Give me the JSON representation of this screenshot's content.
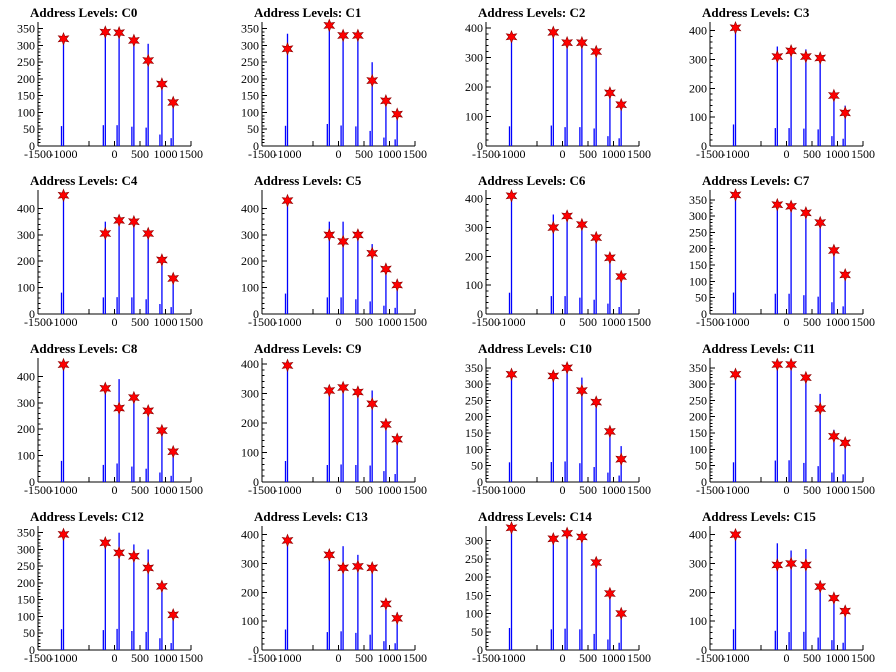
{
  "figure": {
    "colors": {
      "spike": "#0000ff",
      "marker": "#ff0000",
      "background": "#ffffff"
    },
    "marker_icon": "star-icon"
  },
  "chart_data": [
    {
      "type": "histogram-peaks",
      "title": "Address Levels: C0",
      "xlim": [
        -1500,
        1500
      ],
      "ylim": [
        0,
        370
      ],
      "xticks": [
        -1500,
        -1000,
        -500,
        0,
        500,
        1000,
        1500
      ],
      "xtick_labels": [
        "-1500",
        "-1000",
        "",
        "0",
        "500",
        "1000",
        "1500"
      ],
      "yticks": [
        0,
        50,
        100,
        150,
        200,
        250,
        300,
        350
      ],
      "peaks": [
        {
          "x": -1000,
          "y": 320,
          "h": 330
        },
        {
          "x": -180,
          "y": 340,
          "h": 345
        },
        {
          "x": 90,
          "y": 338,
          "h": 345
        },
        {
          "x": 380,
          "y": 315,
          "h": 320
        },
        {
          "x": 660,
          "y": 255,
          "h": 305
        },
        {
          "x": 930,
          "y": 185,
          "h": 190
        },
        {
          "x": 1150,
          "y": 130,
          "h": 130
        }
      ]
    },
    {
      "type": "histogram-peaks",
      "title": "Address Levels: C1",
      "xlim": [
        -1500,
        1500
      ],
      "ylim": [
        0,
        370
      ],
      "xticks": [
        -1500,
        -1000,
        -500,
        0,
        500,
        1000,
        1500
      ],
      "xtick_labels": [
        "-1500",
        "-1000",
        "",
        "0",
        "500",
        "1000",
        "1500"
      ],
      "yticks": [
        0,
        50,
        100,
        150,
        200,
        250,
        300,
        350
      ],
      "peaks": [
        {
          "x": -1000,
          "y": 290,
          "h": 335
        },
        {
          "x": -180,
          "y": 360,
          "h": 365
        },
        {
          "x": 90,
          "y": 330,
          "h": 340
        },
        {
          "x": 380,
          "y": 330,
          "h": 325
        },
        {
          "x": 660,
          "y": 195,
          "h": 250
        },
        {
          "x": 930,
          "y": 135,
          "h": 140
        },
        {
          "x": 1150,
          "y": 95,
          "h": 110
        }
      ]
    },
    {
      "type": "histogram-peaks",
      "title": "Address Levels: C2",
      "xlim": [
        -1500,
        1500
      ],
      "ylim": [
        0,
        420
      ],
      "xticks": [
        -1500,
        -1000,
        -500,
        0,
        500,
        1000,
        1500
      ],
      "xtick_labels": [
        "-1500",
        "-1000",
        "",
        "0",
        "500",
        "1000",
        "1500"
      ],
      "yticks": [
        0,
        100,
        200,
        300,
        400
      ],
      "peaks": [
        {
          "x": -1000,
          "y": 370,
          "h": 370
        },
        {
          "x": -180,
          "y": 385,
          "h": 385
        },
        {
          "x": 90,
          "y": 350,
          "h": 355
        },
        {
          "x": 380,
          "y": 350,
          "h": 355
        },
        {
          "x": 660,
          "y": 320,
          "h": 330
        },
        {
          "x": 930,
          "y": 180,
          "h": 185
        },
        {
          "x": 1150,
          "y": 140,
          "h": 145
        }
      ]
    },
    {
      "type": "histogram-peaks",
      "title": "Address Levels: C3",
      "xlim": [
        -1500,
        1500
      ],
      "ylim": [
        0,
        430
      ],
      "xticks": [
        -1500,
        -1000,
        -500,
        0,
        500,
        1000,
        1500
      ],
      "xtick_labels": [
        "-1500",
        "-1000",
        "",
        "0",
        "500",
        "1000",
        "1500"
      ],
      "yticks": [
        0,
        100,
        200,
        300,
        400
      ],
      "peaks": [
        {
          "x": -1000,
          "y": 410,
          "h": 415
        },
        {
          "x": -180,
          "y": 310,
          "h": 345
        },
        {
          "x": 90,
          "y": 330,
          "h": 345
        },
        {
          "x": 380,
          "y": 310,
          "h": 335
        },
        {
          "x": 660,
          "y": 305,
          "h": 320
        },
        {
          "x": 930,
          "y": 175,
          "h": 190
        },
        {
          "x": 1150,
          "y": 115,
          "h": 140
        }
      ]
    },
    {
      "type": "histogram-peaks",
      "title": "Address Levels: C4",
      "xlim": [
        -1500,
        1500
      ],
      "ylim": [
        0,
        470
      ],
      "xticks": [
        -1500,
        -1000,
        -500,
        0,
        500,
        1000,
        1500
      ],
      "xtick_labels": [
        "-1500",
        "-1000",
        "",
        "0",
        "500",
        "1000",
        "1500"
      ],
      "yticks": [
        0,
        100,
        200,
        300,
        400
      ],
      "peaks": [
        {
          "x": -1000,
          "y": 450,
          "h": 450
        },
        {
          "x": -180,
          "y": 305,
          "h": 350
        },
        {
          "x": 90,
          "y": 355,
          "h": 355
        },
        {
          "x": 380,
          "y": 350,
          "h": 350
        },
        {
          "x": 660,
          "y": 305,
          "h": 310
        },
        {
          "x": 930,
          "y": 205,
          "h": 210
        },
        {
          "x": 1150,
          "y": 135,
          "h": 145
        }
      ]
    },
    {
      "type": "histogram-peaks",
      "title": "Address Levels: C5",
      "xlim": [
        -1500,
        1500
      ],
      "ylim": [
        0,
        470
      ],
      "xticks": [
        -1500,
        -1000,
        -500,
        0,
        500,
        1000,
        1500
      ],
      "xtick_labels": [
        "-1500",
        "-1000",
        "",
        "0",
        "500",
        "1000",
        "1500"
      ],
      "yticks": [
        0,
        100,
        200,
        300,
        400
      ],
      "peaks": [
        {
          "x": -1000,
          "y": 430,
          "h": 430
        },
        {
          "x": -180,
          "y": 300,
          "h": 350
        },
        {
          "x": 90,
          "y": 275,
          "h": 350
        },
        {
          "x": 380,
          "y": 300,
          "h": 310
        },
        {
          "x": 660,
          "y": 230,
          "h": 265
        },
        {
          "x": 930,
          "y": 170,
          "h": 175
        },
        {
          "x": 1150,
          "y": 110,
          "h": 130
        }
      ]
    },
    {
      "type": "histogram-peaks",
      "title": "Address Levels: C6",
      "xlim": [
        -1500,
        1500
      ],
      "ylim": [
        0,
        430
      ],
      "xticks": [
        -1500,
        -1000,
        -500,
        0,
        500,
        1000,
        1500
      ],
      "xtick_labels": [
        "-1500",
        "-1000",
        "",
        "0",
        "500",
        "1000",
        "1500"
      ],
      "yticks": [
        0,
        100,
        200,
        300,
        400
      ],
      "peaks": [
        {
          "x": -1000,
          "y": 410,
          "h": 410
        },
        {
          "x": -180,
          "y": 300,
          "h": 345
        },
        {
          "x": 90,
          "y": 340,
          "h": 345
        },
        {
          "x": 380,
          "y": 310,
          "h": 315
        },
        {
          "x": 660,
          "y": 265,
          "h": 275
        },
        {
          "x": 930,
          "y": 195,
          "h": 200
        },
        {
          "x": 1150,
          "y": 130,
          "h": 135
        }
      ]
    },
    {
      "type": "histogram-peaks",
      "title": "Address Levels: C7",
      "xlim": [
        -1500,
        1500
      ],
      "ylim": [
        0,
        380
      ],
      "xticks": [
        -1500,
        -1000,
        -500,
        0,
        500,
        1000,
        1500
      ],
      "xtick_labels": [
        "-1500",
        "-1000",
        "",
        "0",
        "500",
        "1000",
        "1500"
      ],
      "yticks": [
        0,
        50,
        100,
        150,
        200,
        250,
        300,
        350
      ],
      "peaks": [
        {
          "x": -1000,
          "y": 365,
          "h": 365
        },
        {
          "x": -180,
          "y": 335,
          "h": 345
        },
        {
          "x": 90,
          "y": 330,
          "h": 345
        },
        {
          "x": 380,
          "y": 310,
          "h": 320
        },
        {
          "x": 660,
          "y": 280,
          "h": 295
        },
        {
          "x": 930,
          "y": 195,
          "h": 200
        },
        {
          "x": 1150,
          "y": 120,
          "h": 130
        }
      ]
    },
    {
      "type": "histogram-peaks",
      "title": "Address Levels: C8",
      "xlim": [
        -1500,
        1500
      ],
      "ylim": [
        0,
        470
      ],
      "xticks": [
        -1500,
        -1000,
        -500,
        0,
        500,
        1000,
        1500
      ],
      "xtick_labels": [
        "-1500",
        "-1000",
        "",
        "0",
        "500",
        "1000",
        "1500"
      ],
      "yticks": [
        0,
        100,
        200,
        300,
        400
      ],
      "peaks": [
        {
          "x": -1000,
          "y": 445,
          "h": 445
        },
        {
          "x": -180,
          "y": 355,
          "h": 360
        },
        {
          "x": 90,
          "y": 280,
          "h": 390
        },
        {
          "x": 380,
          "y": 320,
          "h": 325
        },
        {
          "x": 660,
          "y": 270,
          "h": 280
        },
        {
          "x": 930,
          "y": 195,
          "h": 200
        },
        {
          "x": 1150,
          "y": 115,
          "h": 130
        }
      ]
    },
    {
      "type": "histogram-peaks",
      "title": "Address Levels: C9",
      "xlim": [
        -1500,
        1500
      ],
      "ylim": [
        0,
        420
      ],
      "xticks": [
        -1500,
        -1000,
        -500,
        0,
        500,
        1000,
        1500
      ],
      "xtick_labels": [
        "-1500",
        "-1000",
        "",
        "0",
        "500",
        "1000",
        "1500"
      ],
      "yticks": [
        0,
        100,
        200,
        300,
        400
      ],
      "peaks": [
        {
          "x": -1000,
          "y": 395,
          "h": 395
        },
        {
          "x": -180,
          "y": 310,
          "h": 320
        },
        {
          "x": 90,
          "y": 320,
          "h": 330
        },
        {
          "x": 380,
          "y": 305,
          "h": 320
        },
        {
          "x": 660,
          "y": 265,
          "h": 310
        },
        {
          "x": 930,
          "y": 195,
          "h": 205
        },
        {
          "x": 1150,
          "y": 145,
          "h": 150
        }
      ]
    },
    {
      "type": "histogram-peaks",
      "title": "Address Levels: C10",
      "xlim": [
        -1500,
        1500
      ],
      "ylim": [
        0,
        380
      ],
      "xticks": [
        -1500,
        -1000,
        -500,
        0,
        500,
        1000,
        1500
      ],
      "xtick_labels": [
        "-1500",
        "-1000",
        "",
        "0",
        "500",
        "1000",
        "1500"
      ],
      "yticks": [
        0,
        50,
        100,
        150,
        200,
        250,
        300,
        350
      ],
      "peaks": [
        {
          "x": -1000,
          "y": 330,
          "h": 335
        },
        {
          "x": -180,
          "y": 325,
          "h": 340
        },
        {
          "x": 90,
          "y": 350,
          "h": 350
        },
        {
          "x": 380,
          "y": 280,
          "h": 320
        },
        {
          "x": 660,
          "y": 245,
          "h": 255
        },
        {
          "x": 930,
          "y": 155,
          "h": 160
        },
        {
          "x": 1150,
          "y": 70,
          "h": 110
        }
      ]
    },
    {
      "type": "histogram-peaks",
      "title": "Address Levels: C11",
      "xlim": [
        -1500,
        1500
      ],
      "ylim": [
        0,
        380
      ],
      "xticks": [
        -1500,
        -1000,
        -500,
        0,
        500,
        1000,
        1500
      ],
      "xtick_labels": [
        "-1500",
        "-1000",
        "",
        "0",
        "500",
        "1000",
        "1500"
      ],
      "yticks": [
        0,
        50,
        100,
        150,
        200,
        250,
        300,
        350
      ],
      "peaks": [
        {
          "x": -1000,
          "y": 330,
          "h": 335
        },
        {
          "x": -180,
          "y": 360,
          "h": 365
        },
        {
          "x": 90,
          "y": 360,
          "h": 370
        },
        {
          "x": 380,
          "y": 320,
          "h": 325
        },
        {
          "x": 660,
          "y": 225,
          "h": 270
        },
        {
          "x": 930,
          "y": 140,
          "h": 160
        },
        {
          "x": 1150,
          "y": 120,
          "h": 130
        }
      ]
    },
    {
      "type": "histogram-peaks",
      "title": "Address Levels: C12",
      "xlim": [
        -1500,
        1500
      ],
      "ylim": [
        0,
        370
      ],
      "xticks": [
        -1500,
        -1000,
        -500,
        0,
        500,
        1000,
        1500
      ],
      "xtick_labels": [
        "-1500",
        "-1000",
        "",
        "0",
        "500",
        "1000",
        "1500"
      ],
      "yticks": [
        0,
        50,
        100,
        150,
        200,
        250,
        300,
        350
      ],
      "peaks": [
        {
          "x": -1000,
          "y": 345,
          "h": 345
        },
        {
          "x": -180,
          "y": 320,
          "h": 330
        },
        {
          "x": 90,
          "y": 290,
          "h": 350
        },
        {
          "x": 380,
          "y": 280,
          "h": 315
        },
        {
          "x": 660,
          "y": 245,
          "h": 300
        },
        {
          "x": 930,
          "y": 190,
          "h": 195
        },
        {
          "x": 1150,
          "y": 105,
          "h": 115
        }
      ]
    },
    {
      "type": "histogram-peaks",
      "title": "Address Levels: C13",
      "xlim": [
        -1500,
        1500
      ],
      "ylim": [
        0,
        430
      ],
      "xticks": [
        -1500,
        -1000,
        -500,
        0,
        500,
        1000,
        1500
      ],
      "xtick_labels": [
        "-1500",
        "-1000",
        "",
        "0",
        "500",
        "1000",
        "1500"
      ],
      "yticks": [
        0,
        100,
        200,
        300,
        400
      ],
      "peaks": [
        {
          "x": -1000,
          "y": 380,
          "h": 395
        },
        {
          "x": -180,
          "y": 330,
          "h": 345
        },
        {
          "x": 90,
          "y": 285,
          "h": 360
        },
        {
          "x": 380,
          "y": 290,
          "h": 330
        },
        {
          "x": 660,
          "y": 285,
          "h": 295
        },
        {
          "x": 930,
          "y": 160,
          "h": 170
        },
        {
          "x": 1150,
          "y": 110,
          "h": 130
        }
      ]
    },
    {
      "type": "histogram-peaks",
      "title": "Address Levels: C14",
      "xlim": [
        -1500,
        1500
      ],
      "ylim": [
        0,
        340
      ],
      "xticks": [
        -1500,
        -1000,
        -500,
        0,
        500,
        1000,
        1500
      ],
      "xtick_labels": [
        "-1500",
        "-1000",
        "",
        "0",
        "500",
        "1000",
        "1500"
      ],
      "yticks": [
        0,
        50,
        100,
        150,
        200,
        250,
        300
      ],
      "peaks": [
        {
          "x": -1000,
          "y": 335,
          "h": 335
        },
        {
          "x": -180,
          "y": 305,
          "h": 315
        },
        {
          "x": 90,
          "y": 320,
          "h": 325
        },
        {
          "x": 380,
          "y": 310,
          "h": 315
        },
        {
          "x": 660,
          "y": 240,
          "h": 245
        },
        {
          "x": 930,
          "y": 155,
          "h": 160
        },
        {
          "x": 1150,
          "y": 100,
          "h": 110
        }
      ]
    },
    {
      "type": "histogram-peaks",
      "title": "Address Levels: C15",
      "xlim": [
        -1500,
        1500
      ],
      "ylim": [
        0,
        430
      ],
      "xticks": [
        -1500,
        -1000,
        -500,
        0,
        500,
        1000,
        1500
      ],
      "xtick_labels": [
        "-1500",
        "-1000",
        "",
        "0",
        "500",
        "1000",
        "1500"
      ],
      "yticks": [
        0,
        100,
        200,
        300,
        400
      ],
      "peaks": [
        {
          "x": -1000,
          "y": 400,
          "h": 400
        },
        {
          "x": -180,
          "y": 295,
          "h": 370
        },
        {
          "x": 90,
          "y": 300,
          "h": 345
        },
        {
          "x": 380,
          "y": 295,
          "h": 350
        },
        {
          "x": 660,
          "y": 220,
          "h": 240
        },
        {
          "x": 930,
          "y": 180,
          "h": 190
        },
        {
          "x": 1150,
          "y": 135,
          "h": 140
        }
      ]
    }
  ]
}
